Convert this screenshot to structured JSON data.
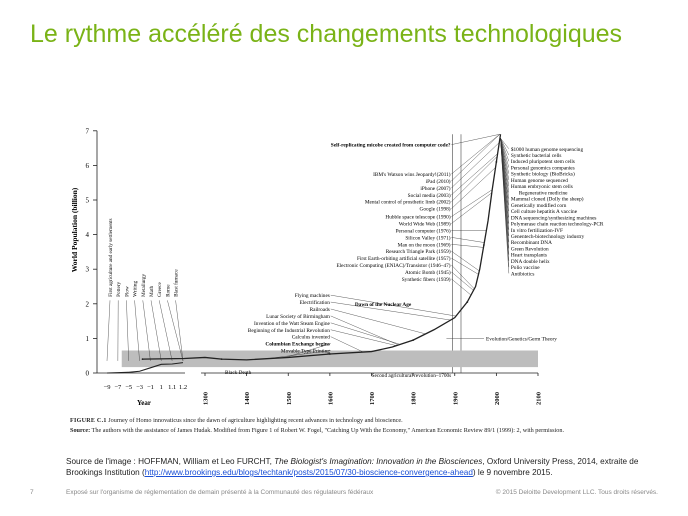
{
  "slide": {
    "title": "Le rythme accéléré des changements technologiques",
    "source_prefix": "Source de l'image : HOFFMAN, William et Leo FURCHT, ",
    "source_book": "The Biologist's Imagination: Innovation in the Biosciences",
    "source_mid": ", Oxford University Press, 2014, extraite de Brookings Institution  (",
    "source_link": "http://www.brookings.edu/blogs/techtank/posts/2015/07/30-bioscience-convergence-ahead",
    "source_suffix": ")  le 9 novembre  2015.",
    "page_number": "7",
    "footer_text": "Exposé sur l'organisme de réglementation de demain présenté à la Communauté des régulateurs fédéraux",
    "copyright": "© 2015 Deloitte Development LLC. Tous droits réservés."
  },
  "caption": {
    "figure_label": "FIGURE C.1",
    "figure_text": "  Journey of Homo innovaticus since the dawn of agriculture highlighting recent advances in technology and bioscience.",
    "source_label": "Source:",
    "source_text": " The authors with the assistance of James Hudak. Modified from Figure 1 of Robert W. Fogel, \"Catching Up With the Economy,\" American Economic Review 89/1 (1999): 2, with permission."
  },
  "colors": {
    "title": "#7ab317",
    "band": "#bdbdbd",
    "line": "#222222",
    "link": "#1a4fd6"
  },
  "chart_data": {
    "type": "line",
    "ylabel": "World Population (billion)",
    "xlabel_left": "Year",
    "ylim": [
      0,
      7
    ],
    "y_ticks": [
      "0",
      "1",
      "2",
      "3",
      "4",
      "5",
      "6",
      "7"
    ],
    "left_ticks": [
      "−9",
      "−7",
      "−5",
      "−3",
      "−1",
      "1",
      "1.1",
      "1.2"
    ],
    "main_ticks": [
      "1300",
      "1400",
      "1500",
      "1600",
      "1700",
      "1800",
      "1900",
      "2000",
      "2100"
    ],
    "main_tick_years": [
      1300,
      1400,
      1500,
      1600,
      1700,
      1800,
      1900,
      2000,
      2100
    ],
    "series": [
      {
        "values_note": "",
        "x": [
          1150,
          1250,
          1300,
          1340,
          1400,
          1500,
          1600,
          1700,
          1750,
          1800,
          1850,
          1900,
          1930,
          1950,
          1960,
          1970,
          1980,
          1990,
          2000,
          2010
        ],
        "y": [
          0.4,
          0.42,
          0.45,
          0.4,
          0.38,
          0.45,
          0.55,
          0.62,
          0.75,
          0.95,
          1.25,
          1.6,
          2.05,
          2.5,
          3.0,
          3.7,
          4.4,
          5.3,
          6.1,
          6.9
        ]
      }
    ],
    "early_series": {
      "x": [
        -9,
        -7,
        -5,
        -3,
        -1,
        1,
        1.1,
        1.2
      ],
      "y": [
        0.0,
        0.01,
        0.02,
        0.05,
        0.15,
        0.25,
        0.26,
        0.3
      ]
    },
    "band": {
      "y_from": 0.17,
      "y_to": 0.65,
      "x_from": 1100,
      "x_to": 2100
    },
    "early_annotations": [
      "First agriculture and early settlements",
      "Pottery",
      "Plow",
      "Writing",
      "Metallurgy",
      "Math",
      "Greece",
      "Rome",
      "Blast furnace"
    ],
    "center_annotations": [
      {
        "label": "Self-replicating micobe created from computer code?",
        "year": 2010,
        "y": 6.6,
        "bold": true
      },
      {
        "label": "IBM's Watson wins Jeopardy!(2011)",
        "year": 2011,
        "y": 5.75
      },
      {
        "label": "iPad (2010)",
        "year": 2010,
        "y": 5.55
      },
      {
        "label": "iPhone (2007)",
        "year": 2007,
        "y": 5.35
      },
      {
        "label": "Social media (2003)",
        "year": 2003,
        "y": 5.15
      },
      {
        "label": "Mental control of prosthetic limb (2002)",
        "year": 2002,
        "y": 4.95
      },
      {
        "label": "Google (1998)",
        "year": 1998,
        "y": 4.75
      },
      {
        "label": "Hubble space telescope (1990)",
        "year": 1990,
        "y": 4.52
      },
      {
        "label": "World Wide Web (1989)",
        "year": 1989,
        "y": 4.32
      },
      {
        "label": "Personal computer (1976)",
        "year": 1976,
        "y": 4.12
      },
      {
        "label": "Silicon Valley (1971)",
        "year": 1971,
        "y": 3.92
      },
      {
        "label": "Man on the moon (1969)",
        "year": 1969,
        "y": 3.72
      },
      {
        "label": "Research Triangle Park (1959)",
        "year": 1959,
        "y": 3.52
      },
      {
        "label": "First Earth-orbiting artificial satellite (1957)",
        "year": 1957,
        "y": 3.32
      },
      {
        "label": "Electronic Computing (ENIAC)/Transistor (1946–47)",
        "year": 1947,
        "y": 3.12
      },
      {
        "label": "Atomic Bomb (1945)",
        "year": 1945,
        "y": 2.92
      },
      {
        "label": "Synthetic fibers (1939)",
        "year": 1939,
        "y": 2.72
      }
    ],
    "mid_annotations": [
      {
        "label": "Flying machines",
        "year": 1903,
        "y": 2.25
      },
      {
        "label": "Electrification",
        "year": 1890,
        "y": 2.05
      },
      {
        "label": "Railroads",
        "year": 1830,
        "y": 1.85
      },
      {
        "label": "Lunar Society of Birmingham",
        "year": 1765,
        "y": 1.65
      },
      {
        "label": "Invention of the Watt Steam Engine",
        "year": 1769,
        "y": 1.45
      },
      {
        "label": "Beginning of the Industrial Revolution",
        "year": 1760,
        "y": 1.25
      },
      {
        "label": "Calculus invented",
        "year": 1680,
        "y": 1.05
      },
      {
        "label": "Columbian Exchange begins",
        "year": 1492,
        "y": 0.85,
        "bold": true
      },
      {
        "label": "Movable Type Printing",
        "year": 1450,
        "y": 0.65
      }
    ],
    "right_annotations": [
      {
        "label": "$1000 human genome sequencing",
        "y": 6.48
      },
      {
        "label": "Synthetic bacterial cells",
        "y": 6.3
      },
      {
        "label": "Induced pluripotent stem cells",
        "y": 6.12
      },
      {
        "label": "Personal genomics companies",
        "y": 5.94
      },
      {
        "label": "Synthetic biology (BioBricks)",
        "y": 5.76
      },
      {
        "label": "Human genome sequenced",
        "y": 5.58
      },
      {
        "label": "Human embryonic stem cells",
        "y": 5.4
      },
      {
        "label": "Regenerative medicine",
        "y": 5.22,
        "indent": true
      },
      {
        "label": "Mammal cloned (Dolly the sheep)",
        "y": 5.04
      },
      {
        "label": "Genetically modified corn",
        "y": 4.86
      },
      {
        "label": "Cell culture hepatitis A vaccine",
        "y": 4.68
      },
      {
        "label": "DNA sequencing/synthesizing machines",
        "y": 4.5
      },
      {
        "label": "Polymerase chain reaction technology-PCR",
        "y": 4.32
      },
      {
        "label": "In vitro fertilization-IVF",
        "y": 4.14
      },
      {
        "label": "Genentech-biotechnology industry",
        "y": 3.96
      },
      {
        "label": "Recombinant DNA",
        "y": 3.78
      },
      {
        "label": "Green Revolution",
        "y": 3.6
      },
      {
        "label": "Heart transplants",
        "y": 3.42
      },
      {
        "label": "DNA double helix",
        "y": 3.24
      },
      {
        "label": "Polio vaccine",
        "y": 3.06
      },
      {
        "label": "Antibiotics",
        "y": 2.88
      }
    ],
    "band_annotations": [
      {
        "label": "Dawn of the Nuclear Age",
        "year": 1945,
        "y": 2.0,
        "bold": true
      },
      {
        "label": "Evolution/Genetics/Germ Theory",
        "year": 1880,
        "y": 1.0
      },
      {
        "label": "Black Death",
        "year": 1348,
        "y": -0.05
      },
      {
        "label": "Second agricultural revolution–1700s",
        "year": 1750,
        "y": -0.1
      }
    ]
  }
}
